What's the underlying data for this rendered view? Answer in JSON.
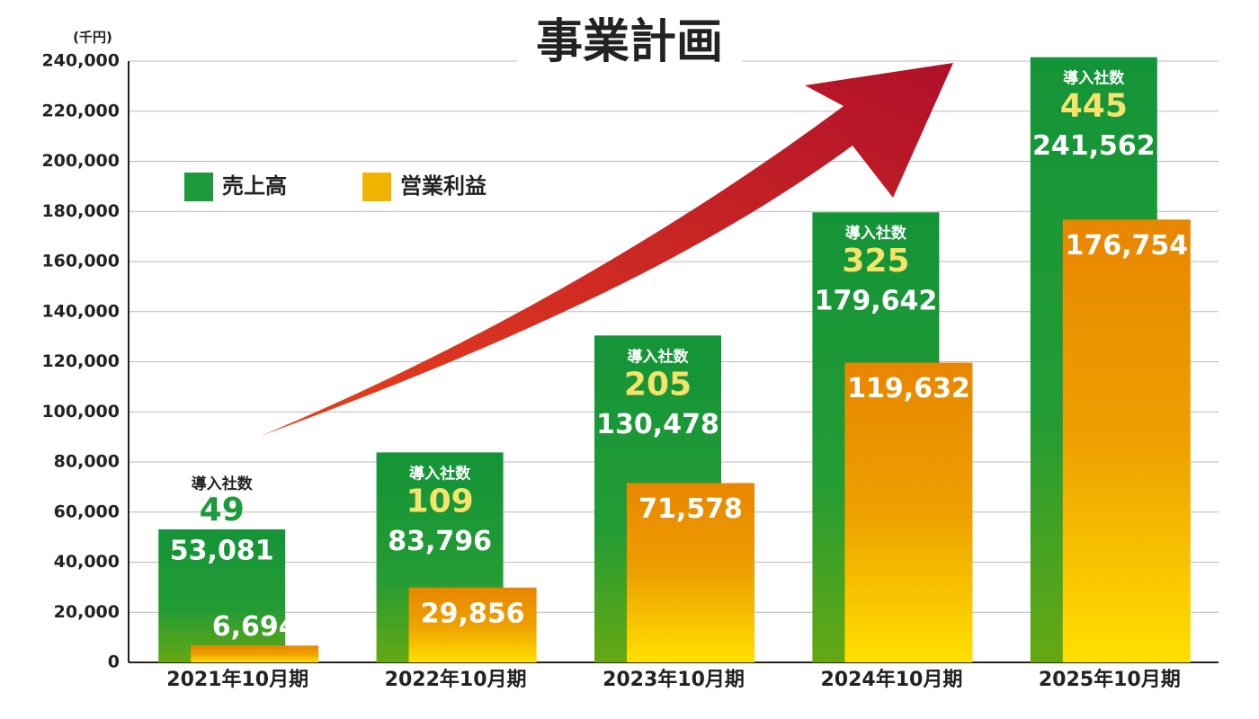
{
  "chart_data": {
    "type": "bar",
    "title": "事業計画",
    "y_unit": "(千円)",
    "categories": [
      "2021年10月期",
      "2022年10月期",
      "2023年10月期",
      "2024年10月期",
      "2025年10月期"
    ],
    "series": [
      {
        "name": "売上高",
        "color": "#1c9a3c",
        "values": [
          53081,
          83796,
          130478,
          179642,
          241562
        ],
        "value_labels": [
          "53,081",
          "83,796",
          "130,478",
          "179,642",
          "241,562"
        ]
      },
      {
        "name": "営業利益",
        "color": "#f0b400",
        "values": [
          6694,
          29856,
          71578,
          119632,
          176754
        ],
        "value_labels": [
          "6,694",
          "29,856",
          "71,578",
          "119,632",
          "176,754"
        ]
      }
    ],
    "installs": {
      "label": "導入社数",
      "values": [
        49,
        109,
        205,
        325,
        445
      ]
    },
    "ylim": [
      0,
      240000
    ],
    "yticks": [
      0,
      {
        "value": 20000,
        "label": "20,000"
      },
      {
        "value": 40000,
        "label": "40,000"
      },
      {
        "value": 60000,
        "label": "60,000"
      },
      {
        "value": 80000,
        "label": "80,000"
      },
      {
        "value": 100000,
        "label": "100,000"
      },
      {
        "value": 120000,
        "label": "120,000"
      },
      {
        "value": 140000,
        "label": "140,000"
      },
      {
        "value": 160000,
        "label": "160,000"
      },
      {
        "value": 180000,
        "label": "180,000"
      },
      {
        "value": 200000,
        "label": "200,000"
      },
      {
        "value": 220000,
        "label": "220,000"
      },
      {
        "value": 240000,
        "label": "240,000"
      }
    ],
    "grid": true,
    "legend": "upper left"
  }
}
